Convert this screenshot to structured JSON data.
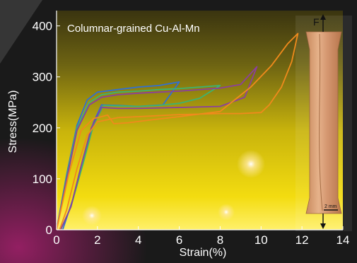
{
  "chart_data": {
    "type": "line",
    "title": "Columnar-grained Cu-Al-Mn",
    "xlabel": "Strain(%)",
    "ylabel": "Stress(MPa)",
    "xlim": [
      0,
      14
    ],
    "ylim": [
      0,
      430
    ],
    "xticks": [
      "0",
      "2",
      "4",
      "6",
      "8",
      "10",
      "12",
      "14"
    ],
    "yticks": [
      "0",
      "100",
      "200",
      "300",
      "400"
    ],
    "grid": false,
    "legend": "none",
    "series": [
      {
        "color": "#2f6fd6",
        "x": [
          0.0,
          0.5,
          1.0,
          1.5,
          2.0,
          3.0,
          4.0,
          5.0,
          6.0,
          5.2,
          4.0,
          3.0,
          2.2,
          1.8,
          1.3,
          0.8,
          0.3
        ],
        "y": [
          0,
          110,
          205,
          255,
          270,
          275,
          280,
          283,
          290,
          245,
          242,
          244,
          245,
          210,
          140,
          60,
          0
        ]
      },
      {
        "color": "#3cb371",
        "x": [
          0.0,
          0.5,
          1.0,
          1.6,
          2.2,
          3.0,
          4.0,
          5.0,
          6.0,
          7.0,
          8.0,
          7.0,
          6.0,
          5.0,
          4.0,
          3.0,
          2.3,
          1.8,
          1.3,
          0.7,
          0.2
        ],
        "y": [
          0,
          105,
          200,
          250,
          265,
          270,
          272,
          275,
          277,
          280,
          283,
          258,
          248,
          244,
          242,
          243,
          244,
          205,
          130,
          45,
          0
        ]
      },
      {
        "color": "#8b3f9e",
        "x": [
          0.0,
          0.5,
          1.0,
          1.6,
          2.2,
          3.0,
          4.0,
          6.0,
          8.0,
          9.0,
          9.8,
          9.2,
          8.0,
          6.0,
          4.0,
          3.0,
          2.2,
          1.7,
          1.2,
          0.7,
          0.2
        ],
        "y": [
          0,
          100,
          195,
          245,
          260,
          265,
          268,
          272,
          278,
          285,
          320,
          260,
          242,
          240,
          238,
          238,
          240,
          200,
          125,
          45,
          0
        ]
      },
      {
        "color": "#f08a1c",
        "x": [
          0.0,
          0.6,
          1.2,
          1.8,
          2.2,
          2.5,
          2.8,
          3.5,
          4.5,
          6.0,
          8.0,
          9.5,
          10.5,
          11.3,
          11.8,
          11.5,
          11.0,
          10.4,
          10.0,
          9.0,
          8.0,
          6.0,
          4.0,
          3.0,
          2.0,
          1.5,
          1.0,
          0.5,
          0.15
        ],
        "y": [
          0,
          110,
          195,
          218,
          222,
          225,
          208,
          210,
          215,
          222,
          232,
          280,
          322,
          365,
          385,
          330,
          280,
          245,
          230,
          228,
          228,
          226,
          222,
          220,
          212,
          185,
          120,
          40,
          0
        ]
      }
    ]
  },
  "inset": {
    "force_label": "F",
    "scale_bar_label": "2 mm"
  }
}
